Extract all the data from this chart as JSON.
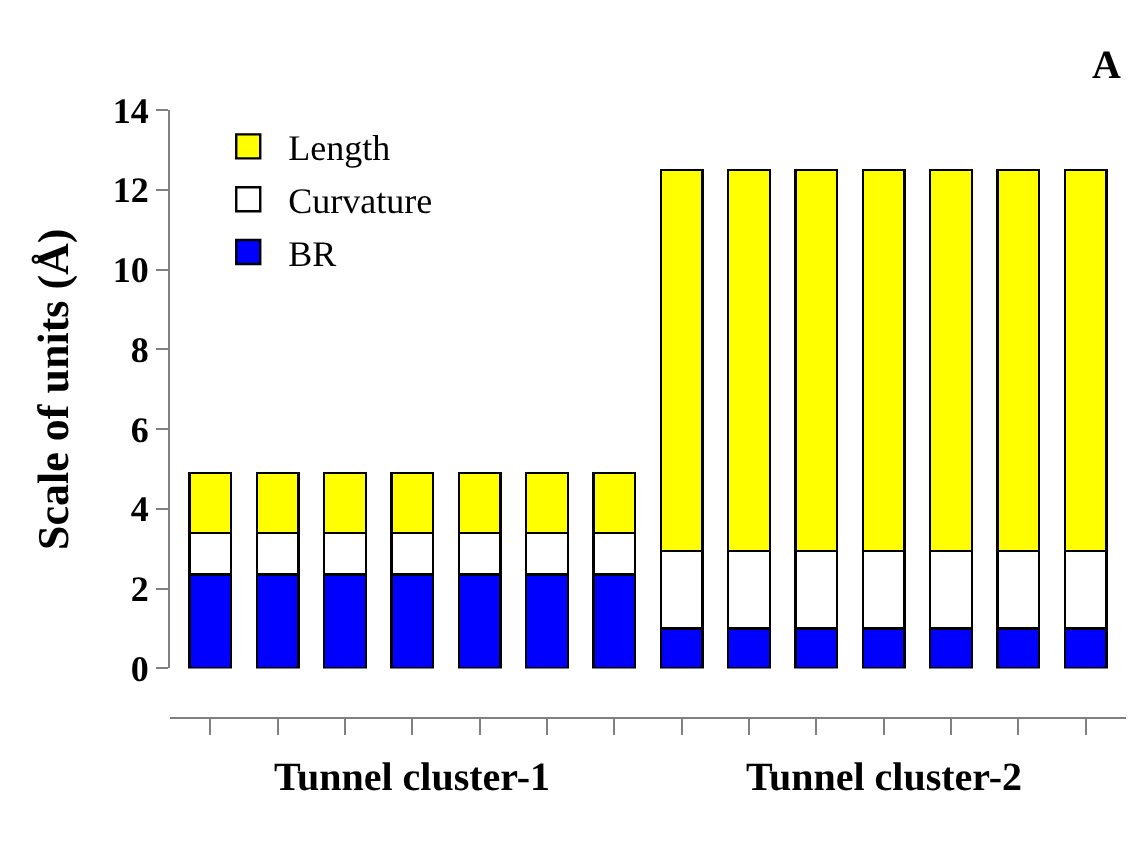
{
  "chart_data": {
    "type": "bar",
    "stacked": true,
    "ylabel": "Scale of units (Å)",
    "categories": [
      null,
      null,
      null,
      null,
      null,
      null,
      null,
      null,
      null,
      null,
      null,
      null,
      null,
      null
    ],
    "series": [
      {
        "name": "BR",
        "color": "#0000ff",
        "values": [
          2.35,
          2.35,
          2.35,
          2.35,
          2.35,
          2.35,
          2.35,
          1.0,
          1.0,
          1.0,
          1.0,
          1.0,
          1.0,
          1.0
        ]
      },
      {
        "name": "Curvature",
        "color": "#ffffff",
        "values": [
          1.05,
          1.05,
          1.05,
          1.05,
          1.05,
          1.05,
          1.05,
          1.95,
          1.95,
          1.95,
          1.95,
          1.95,
          1.95,
          1.95
        ]
      },
      {
        "name": "Length",
        "color": "#ffff00",
        "values": [
          1.5,
          1.5,
          1.5,
          1.5,
          1.5,
          1.5,
          1.5,
          9.55,
          9.55,
          9.55,
          9.55,
          9.55,
          9.55,
          9.55
        ]
      }
    ],
    "ylim": [
      0,
      14
    ],
    "yticks": [
      0,
      2,
      4,
      6,
      8,
      10,
      12,
      14
    ],
    "legend": "top left",
    "tick_labels": "y",
    "annotations": [
      "A",
      "Tunnel cluster-1",
      "Tunnel cluster-2"
    ]
  }
}
